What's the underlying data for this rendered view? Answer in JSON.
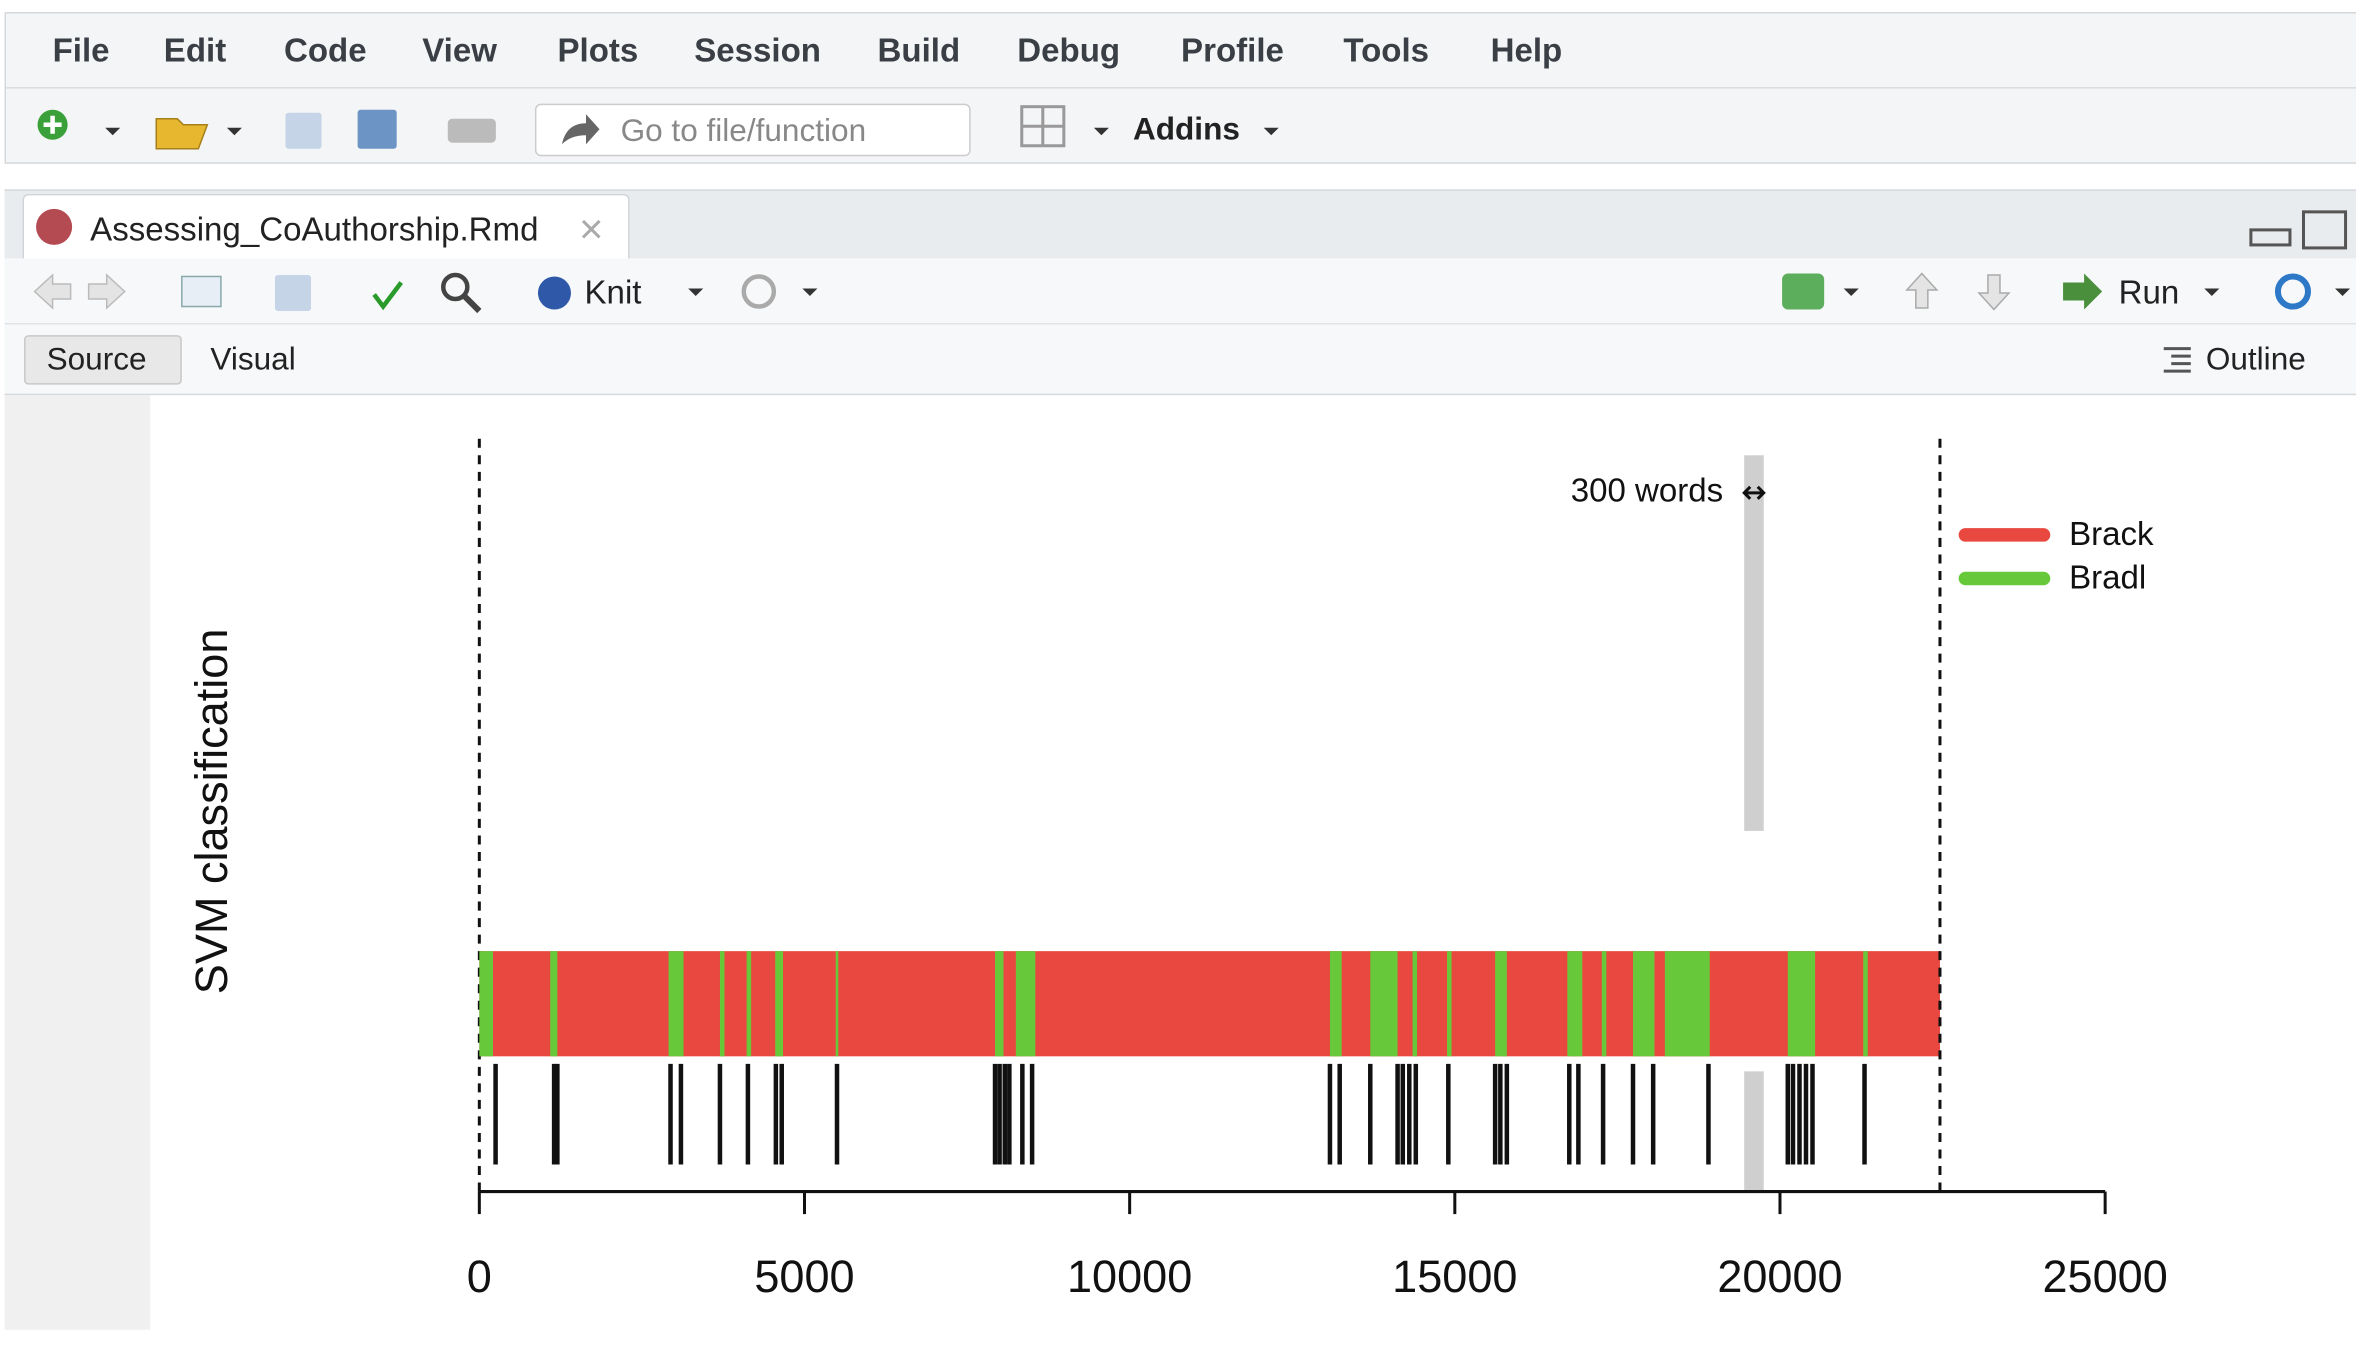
{
  "menu": [
    "File",
    "Edit",
    "Code",
    "View",
    "Plots",
    "Session",
    "Build",
    "Debug",
    "Profile",
    "Tools",
    "Help"
  ],
  "toolbar": {
    "search_placeholder": "Go to file/function",
    "addins": "Addins"
  },
  "editor": {
    "tab_title": "Assessing_CoAuthorship.Rmd",
    "knit": "Knit",
    "run": "Run",
    "source": "Source",
    "visual": "Visual",
    "outline": "Outline"
  },
  "chart_data": {
    "type": "segments",
    "y_label": "SVM classification",
    "xlim": [
      0,
      25000
    ],
    "xticks": [
      0,
      5000,
      10000,
      15000,
      20000,
      25000
    ],
    "series": [
      {
        "name": "Brack",
        "color": "#e8483f",
        "segments": [
          [
            0,
            22460
          ]
        ]
      },
      {
        "name": "Bradl",
        "color": "#67c93a",
        "segments": [
          [
            0,
            210
          ],
          [
            1090,
            1200
          ],
          [
            2910,
            3140
          ],
          [
            3700,
            3770
          ],
          [
            4110,
            4180
          ],
          [
            4550,
            4670
          ],
          [
            5480,
            5520
          ],
          [
            7930,
            8060
          ],
          [
            8250,
            8550
          ],
          [
            13080,
            13260
          ],
          [
            13700,
            14120
          ],
          [
            14350,
            14420
          ],
          [
            14880,
            14950
          ],
          [
            15620,
            15800
          ],
          [
            16730,
            16960
          ],
          [
            17260,
            17330
          ],
          [
            17740,
            18070
          ],
          [
            18230,
            18920
          ],
          [
            20120,
            20540
          ],
          [
            21280,
            21350
          ]
        ]
      }
    ],
    "markers": [
      250,
      1150,
      1200,
      2940,
      3100,
      3700,
      4130,
      4560,
      4650,
      5500,
      7930,
      8000,
      8080,
      8150,
      8350,
      8500,
      13080,
      13230,
      13700,
      14120,
      14200,
      14300,
      14400,
      14900,
      15620,
      15700,
      15800,
      16760,
      16900,
      17280,
      17740,
      18050,
      18900,
      20120,
      20200,
      20300,
      20400,
      20500,
      21300
    ],
    "annotation": {
      "label": "300 words",
      "x": 19450,
      "width": 300
    }
  }
}
